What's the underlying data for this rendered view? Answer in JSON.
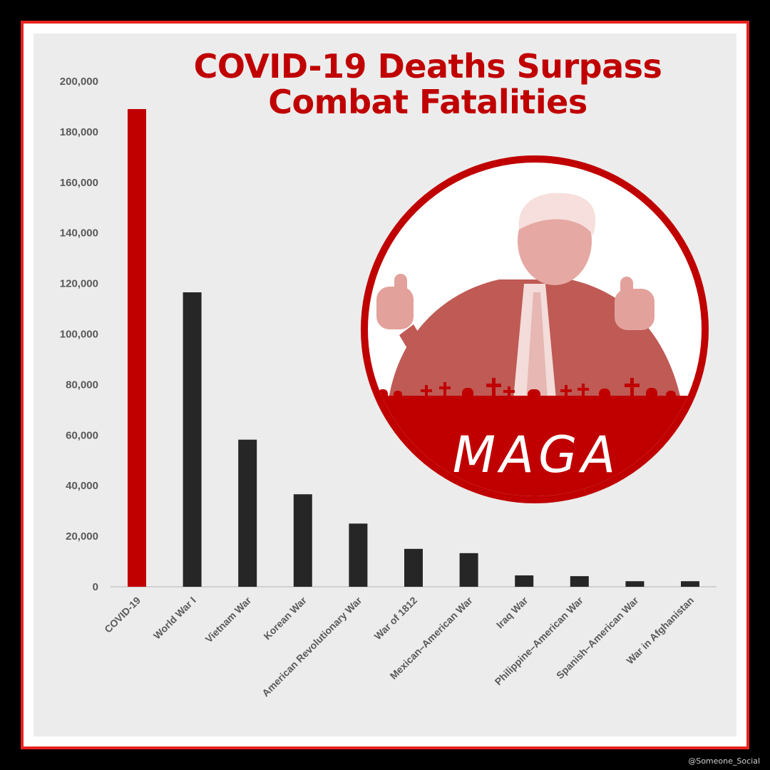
{
  "title_line1": "COVID-19 Deaths Surpass",
  "title_line2": "Combat Fatalities",
  "badge": {
    "text": "MAGA",
    "accent": "#c00000"
  },
  "watermark": "@Someone_Social",
  "colors": {
    "highlight": "#c00000",
    "bar": "#262626",
    "frame": "#e8231f",
    "panel": "#ececec"
  },
  "chart_data": {
    "type": "bar",
    "title": "COVID-19 Deaths Surpass Combat Fatalities",
    "categories": [
      "COVID-19",
      "World War I",
      "Vietnam War",
      "Korean War",
      "American Revolutionary War",
      "War of 1812",
      "Mexican–American War",
      "Iraq War",
      "Philippine–American War",
      "Spanish–American War",
      "War in Afghanistan"
    ],
    "values": [
      189000,
      116500,
      58200,
      36600,
      25000,
      15000,
      13300,
      4500,
      4200,
      2200,
      2200
    ],
    "highlight_index": 0,
    "ylim": [
      0,
      200000
    ],
    "yticks": [
      "0",
      "20,000",
      "40,000",
      "60,000",
      "80,000",
      "100,000",
      "120,000",
      "140,000",
      "160,000",
      "180,000",
      "200,000"
    ],
    "xlabel": "",
    "ylabel": "",
    "grid": false
  }
}
